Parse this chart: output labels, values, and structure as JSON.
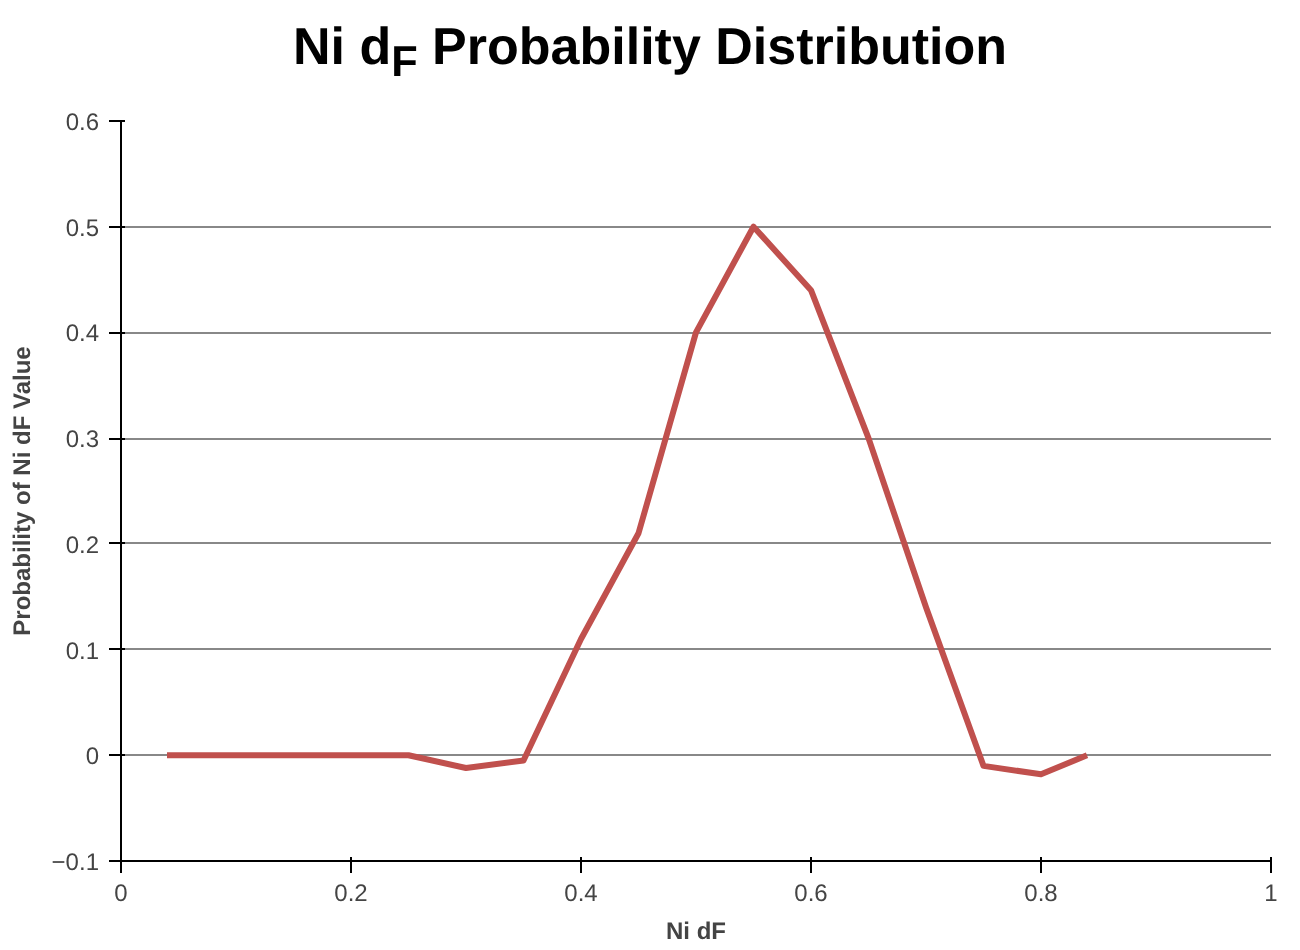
{
  "chart_data": {
    "type": "line",
    "title": "Ni d$_{F}$ Probability Distribution",
    "xlabel": "Ni dF",
    "ylabel": "Probability of Ni dF Value",
    "x": [
      0.04,
      0.15,
      0.25,
      0.3,
      0.35,
      0.4,
      0.45,
      0.5,
      0.55,
      0.6,
      0.65,
      0.7,
      0.75,
      0.8,
      0.84
    ],
    "series": [
      {
        "color": "#c0504d",
        "values": [
          0,
          0,
          0,
          -0.012,
          -0.005,
          0.11,
          0.21,
          0.4,
          0.5,
          0.44,
          0.3,
          0.14,
          -0.01,
          -0.018,
          0
        ]
      }
    ],
    "xlim": [
      0,
      1
    ],
    "xticks": [
      0,
      0.2,
      0.4,
      0.6,
      0.8,
      1
    ],
    "ylim": [
      -0.1,
      0.6
    ],
    "yticks": [
      -0.1,
      0,
      0.1,
      0.2,
      0.3,
      0.4,
      0.5,
      0.6
    ],
    "grid": "y",
    "marker": "none",
    "line_style": "solid"
  }
}
